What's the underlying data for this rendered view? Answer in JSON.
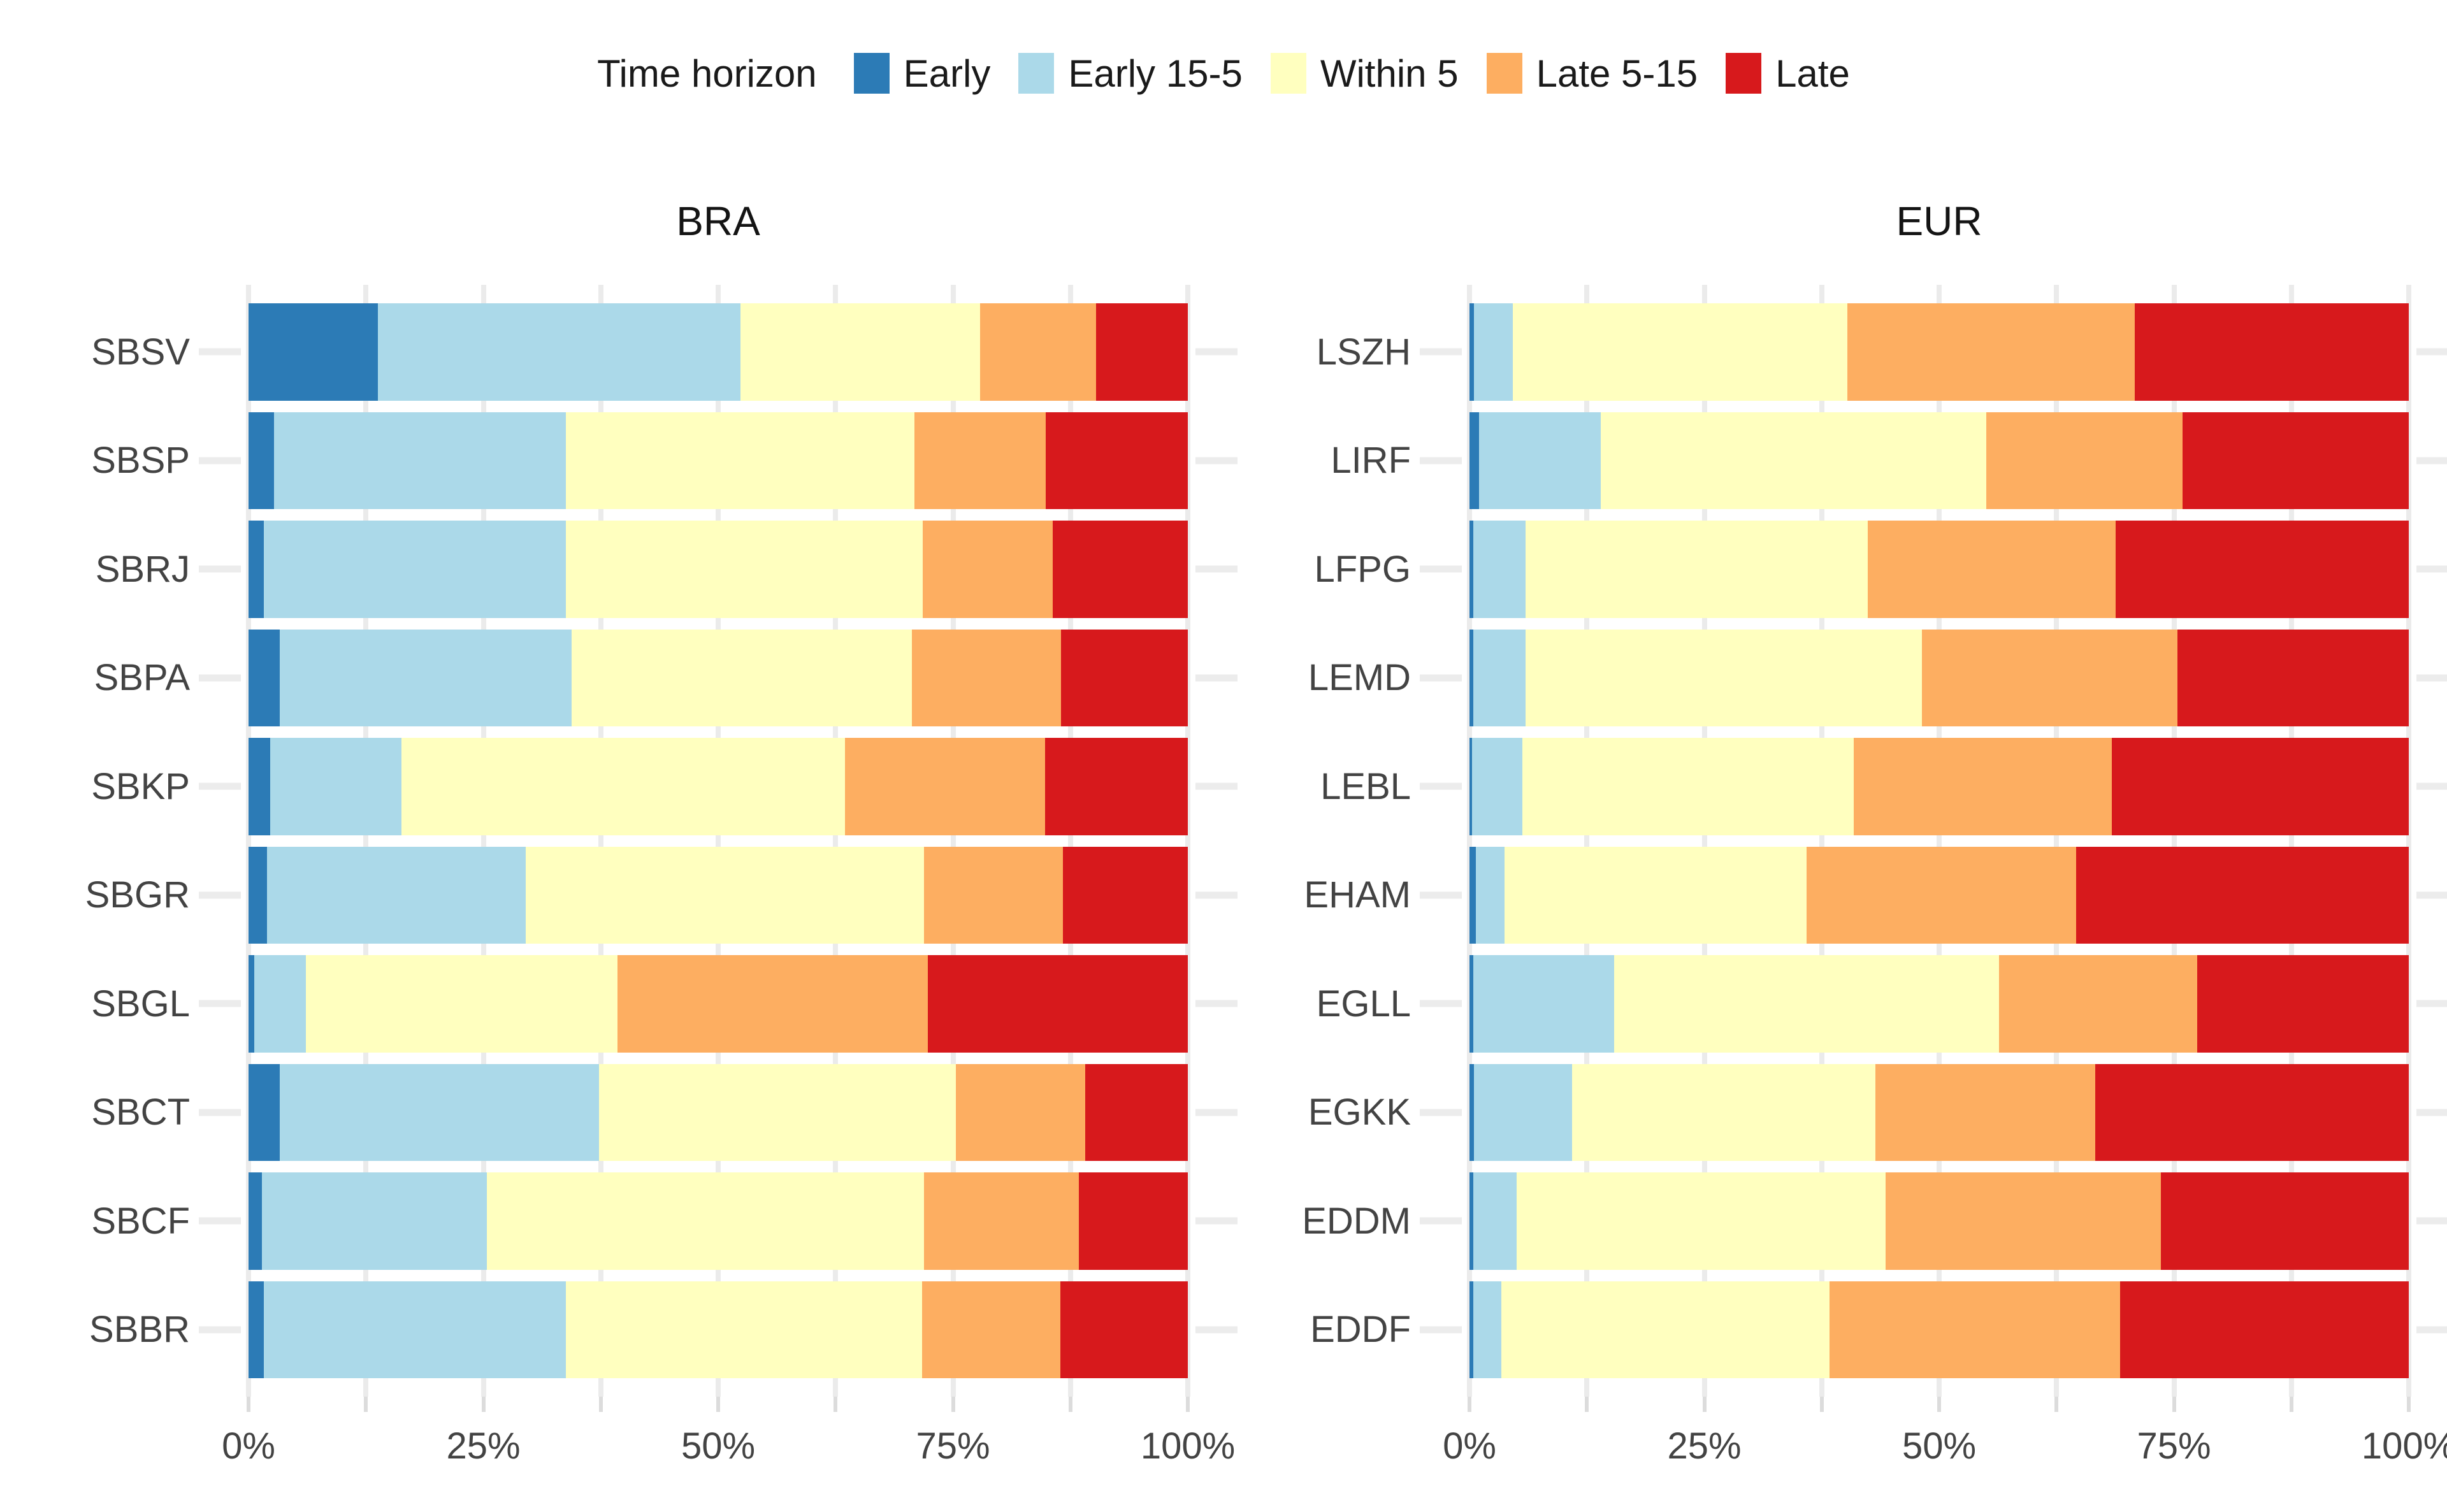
{
  "legend": {
    "title": "Time horizon",
    "items": [
      {
        "label": "Early",
        "color": "#2c7bb6"
      },
      {
        "label": "Early 15-5",
        "color": "#abd9e9"
      },
      {
        "label": "Within 5",
        "color": "#ffffbf"
      },
      {
        "label": "Late 5-15",
        "color": "#fdae61"
      },
      {
        "label": "Late",
        "color": "#d7191c"
      }
    ]
  },
  "x_axis": {
    "tick_step_percent": 12.5,
    "labels": [
      "0%",
      "25%",
      "50%",
      "75%",
      "100%"
    ],
    "label_positions": [
      0,
      25,
      50,
      75,
      100
    ]
  },
  "style": {
    "gridline_color": "#ebebeb",
    "x_tick_color": "#dcdcdc",
    "y_tick_color": "#ececec",
    "axis_text_color": "#434343",
    "title_color": "#141414"
  },
  "chart_data": [
    {
      "type": "bar",
      "orientation": "horizontal",
      "stacked": true,
      "title": "BRA",
      "xlabel": "",
      "ylabel": "",
      "xlim": [
        0,
        100
      ],
      "unit": "percent",
      "categories": [
        "SBSV",
        "SBSP",
        "SBRJ",
        "SBPA",
        "SBKP",
        "SBGR",
        "SBGL",
        "SBCT",
        "SBCF",
        "SBBR"
      ],
      "series": [
        {
          "name": "Early",
          "color": "#2c7bb6",
          "values": [
            13.8,
            2.7,
            1.6,
            3.3,
            2.3,
            2.0,
            0.6,
            3.3,
            1.4,
            1.6
          ]
        },
        {
          "name": "Early 15-5",
          "color": "#abd9e9",
          "values": [
            38.6,
            31.1,
            32.2,
            31.1,
            14.0,
            27.5,
            5.5,
            34.0,
            24.0,
            32.2
          ]
        },
        {
          "name": "Within 5",
          "color": "#ffffbf",
          "values": [
            25.5,
            37.1,
            38.0,
            36.2,
            47.2,
            42.4,
            33.2,
            38.0,
            46.5,
            37.9
          ]
        },
        {
          "name": "Late 5-15",
          "color": "#fdae61",
          "values": [
            12.3,
            14.0,
            13.8,
            15.9,
            21.3,
            14.8,
            33.0,
            13.8,
            16.5,
            14.7
          ]
        },
        {
          "name": "Late",
          "color": "#d7191c",
          "values": [
            9.8,
            15.1,
            14.4,
            13.5,
            15.2,
            13.3,
            27.7,
            10.9,
            11.6,
            13.6
          ]
        }
      ]
    },
    {
      "type": "bar",
      "orientation": "horizontal",
      "stacked": true,
      "title": "EUR",
      "xlabel": "",
      "ylabel": "",
      "xlim": [
        0,
        100
      ],
      "unit": "percent",
      "categories": [
        "LSZH",
        "LIRF",
        "LFPG",
        "LEMD",
        "LEBL",
        "EHAM",
        "EGLL",
        "EGKK",
        "EDDM",
        "EDDF"
      ],
      "series": [
        {
          "name": "Early",
          "color": "#2c7bb6",
          "values": [
            0.5,
            1.0,
            0.4,
            0.4,
            0.3,
            0.7,
            0.4,
            0.5,
            0.4,
            0.4
          ]
        },
        {
          "name": "Early 15-5",
          "color": "#abd9e9",
          "values": [
            4.1,
            13.0,
            5.6,
            5.6,
            5.3,
            3.0,
            15.0,
            10.4,
            4.6,
            3.0
          ]
        },
        {
          "name": "Within 5",
          "color": "#ffffbf",
          "values": [
            35.6,
            41.0,
            36.4,
            42.2,
            35.3,
            32.2,
            41.0,
            32.3,
            39.3,
            34.9
          ]
        },
        {
          "name": "Late 5-15",
          "color": "#fdae61",
          "values": [
            30.6,
            20.9,
            26.4,
            27.2,
            27.5,
            28.7,
            21.1,
            23.4,
            29.3,
            31.0
          ]
        },
        {
          "name": "Late",
          "color": "#d7191c",
          "values": [
            29.2,
            24.1,
            31.2,
            24.6,
            31.6,
            35.4,
            22.5,
            33.4,
            26.4,
            30.7
          ]
        }
      ]
    }
  ]
}
